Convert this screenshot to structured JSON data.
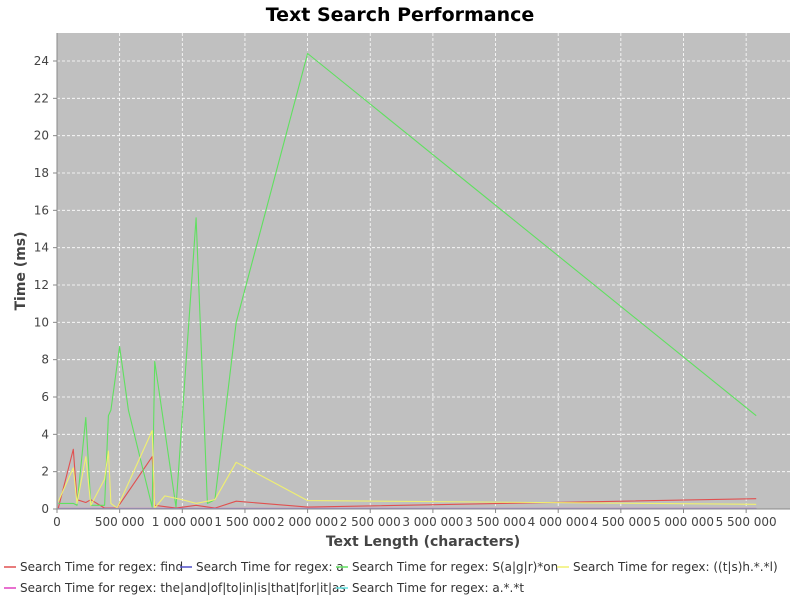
{
  "chart_data": {
    "type": "line",
    "title": "Text Search Performance",
    "xlabel": "Text Length (characters)",
    "ylabel": "Time (ms)",
    "xlim": [
      0,
      5850000
    ],
    "ylim": [
      0,
      25.5
    ],
    "xticks": [
      0,
      500000,
      1000000,
      1500000,
      2000000,
      2500000,
      3000000,
      3500000,
      4000000,
      4500000,
      5000000,
      5500000
    ],
    "xtick_labels": [
      "0",
      "500 000",
      "1 000 000",
      "1 500 000",
      "2 000 000",
      "2 500 000",
      "3 000 000",
      "3 500 000",
      "4 000 000",
      "4 500 000",
      "5 000 000",
      "5 500 000"
    ],
    "yticks": [
      0,
      2,
      4,
      6,
      8,
      10,
      12,
      14,
      16,
      18,
      20,
      22,
      24
    ],
    "ytick_labels": [
      "0",
      "2",
      "4",
      "6",
      "8",
      "10",
      "12",
      "14",
      "16",
      "18",
      "20",
      "22",
      "24"
    ],
    "grid": true,
    "legend_position": "bottom",
    "series": [
      {
        "name": "Search Time for regex: find",
        "color": "#e05050",
        "points": [
          [
            10000,
            0.05
          ],
          [
            130000,
            3.2
          ],
          [
            160000,
            0.5
          ],
          [
            230000,
            0.35
          ],
          [
            270000,
            0.5
          ],
          [
            380000,
            0.05
          ],
          [
            480000,
            0.05
          ],
          [
            760000,
            2.8
          ],
          [
            780000,
            0.2
          ],
          [
            950000,
            0.05
          ],
          [
            1110000,
            0.2
          ],
          [
            1260000,
            0.05
          ],
          [
            1430000,
            0.42
          ],
          [
            2000000,
            0.1
          ],
          [
            5580000,
            0.55
          ]
        ]
      },
      {
        "name": "Search Time for regex: a",
        "color": "#5050c8",
        "points": [
          [
            10000,
            0.02
          ],
          [
            500000,
            0.02
          ],
          [
            1000000,
            0.02
          ],
          [
            2000000,
            0.02
          ],
          [
            5580000,
            0.02
          ]
        ]
      },
      {
        "name": "Search Time for regex: S(a|g|r)*on",
        "color": "#60e060",
        "points": [
          [
            10000,
            0.3
          ],
          [
            130000,
            0.3
          ],
          [
            160000,
            0.2
          ],
          [
            230000,
            4.9
          ],
          [
            270000,
            0.2
          ],
          [
            380000,
            0.2
          ],
          [
            410000,
            5.0
          ],
          [
            430000,
            5.3
          ],
          [
            500000,
            8.7
          ],
          [
            570000,
            5.3
          ],
          [
            760000,
            0.1
          ],
          [
            780000,
            7.9
          ],
          [
            950000,
            0.1
          ],
          [
            1110000,
            15.6
          ],
          [
            1200000,
            0.3
          ],
          [
            1260000,
            0.5
          ],
          [
            1430000,
            10.0
          ],
          [
            2000000,
            24.4
          ],
          [
            5580000,
            5.0
          ]
        ]
      },
      {
        "name": "Search Time for regex: ((t|s)h.*.*l)",
        "color": "#f0f070",
        "points": [
          [
            10000,
            0.4
          ],
          [
            130000,
            2.2
          ],
          [
            160000,
            0.3
          ],
          [
            230000,
            2.8
          ],
          [
            270000,
            0.2
          ],
          [
            380000,
            1.6
          ],
          [
            410000,
            3.1
          ],
          [
            430000,
            0.3
          ],
          [
            480000,
            0.05
          ],
          [
            760000,
            4.2
          ],
          [
            780000,
            0.05
          ],
          [
            860000,
            0.7
          ],
          [
            1000000,
            0.5
          ],
          [
            1110000,
            0.3
          ],
          [
            1260000,
            0.5
          ],
          [
            1430000,
            2.5
          ],
          [
            2000000,
            0.45
          ],
          [
            5580000,
            0.25
          ]
        ]
      },
      {
        "name": "Search Time for regex: the|and|of|to|in|is|that|for|it|as",
        "color": "#e040c0",
        "points": [
          [
            10000,
            0.03
          ],
          [
            500000,
            0.03
          ],
          [
            1000000,
            0.03
          ],
          [
            2000000,
            0.03
          ],
          [
            5580000,
            0.03
          ]
        ]
      },
      {
        "name": "Search Time for regex: a.*.*t",
        "color": "#60e0e0",
        "points": [
          [
            10000,
            0.01
          ],
          [
            500000,
            0.01
          ],
          [
            1000000,
            0.01
          ],
          [
            2000000,
            0.01
          ],
          [
            5580000,
            0.01
          ]
        ]
      }
    ]
  }
}
